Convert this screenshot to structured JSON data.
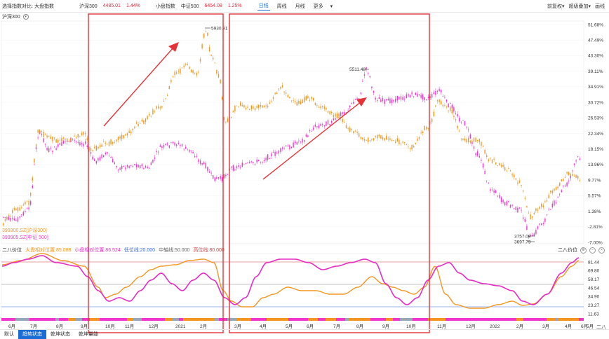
{
  "topbar": {
    "compare_label": "选择指数对比:",
    "compare_value": "大盘指数",
    "index1_name": "沪深300",
    "index1_value": "4485.01",
    "index1_change": "1.44%",
    "small_cap_label": "小盘指数",
    "index2_name": "中证500",
    "index2_value": "6454.08",
    "index2_change": "1.25%",
    "periods": [
      "日线",
      "周线",
      "月线"
    ],
    "active_period": "日线",
    "more_label": "更多",
    "adjust_label": "前复权",
    "overlay_label": "叠加",
    "overlay_label_full": "超级叠加",
    "draw_label": "画线"
  },
  "symbol_title": "沪深300",
  "legend": {
    "series1": "399300.SZ[沪深300]",
    "series2": "399905.SZ[中证 500]"
  },
  "colors": {
    "series1": "#f39621",
    "series2": "#f035cc",
    "annotation": "#e53238",
    "active_blue": "#1a6cd6",
    "up_red": "#e8243c"
  },
  "price_annotations": {
    "peak1": "5930.91",
    "peak2": "5511.48",
    "low1": "3757.09",
    "low2": "3697.79"
  },
  "y_axis_main": [
    "51.68%",
    "47.49%",
    "43.30%",
    "39.11%",
    "34.91%",
    "30.72%",
    "26.53%",
    "22.34%",
    "18.15%",
    "13.96%",
    "9.77%",
    "5.57%",
    "1.38%",
    "-2.81%",
    "-7.00%"
  ],
  "indicator": {
    "title": "二八价位",
    "large_label": "大盘相对位置:85.088",
    "small_label": "小盘相对位置:86.524",
    "low_label": "低位线:20.000",
    "mid_label": "中轴线:50.000",
    "high_label": "高位线:80.000",
    "right_title": "二八价位",
    "y_axis": [
      "81.44",
      "69.80",
      "58.17",
      "46.54",
      "34.90",
      "23.27",
      "11.63"
    ]
  },
  "x_axis": [
    "6月",
    "7月",
    "8月",
    "9月",
    "10月",
    "11月",
    "12月",
    "2021",
    "2月",
    "3月",
    "4月",
    "5月",
    "6月",
    "7月",
    "8月",
    "9月",
    "10月",
    "11月",
    "12月",
    "2022",
    "2月",
    "3月",
    "4月",
    "5月",
    "6月"
  ],
  "tabs": [
    "默认",
    "趋势状态",
    "乾坤状态",
    "乾坤量能"
  ],
  "active_tab": "趋势状态",
  "corner_label": "二八"
}
